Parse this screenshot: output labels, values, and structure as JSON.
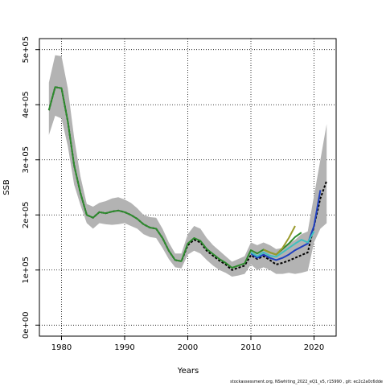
{
  "chart_data": {
    "type": "line",
    "xlabel": "Years",
    "ylabel": "SSB",
    "xlim": [
      1976.5,
      2023.5
    ],
    "ylim": [
      -20000,
      520000
    ],
    "x_ticks": [
      1980,
      1990,
      2000,
      2010,
      2020
    ],
    "x_tick_labels": [
      "1980",
      "1990",
      "2000",
      "2010",
      "2020"
    ],
    "y_ticks": [
      0,
      100000,
      200000,
      300000,
      400000,
      500000
    ],
    "y_tick_labels": [
      "0e+00",
      "1e+05",
      "2e+05",
      "3e+05",
      "4e+05",
      "5e+05"
    ],
    "grid": true,
    "confidence_band": {
      "x": [
        1978,
        1979,
        1980,
        1981,
        1982,
        1983,
        1984,
        1985,
        1986,
        1987,
        1988,
        1989,
        1990,
        1991,
        1992,
        1993,
        1994,
        1995,
        1996,
        1997,
        1998,
        1999,
        2000,
        2001,
        2002,
        2003,
        2004,
        2005,
        2006,
        2007,
        2008,
        2009,
        2010,
        2011,
        2012,
        2013,
        2014,
        2015,
        2016,
        2017,
        2018,
        2019,
        2020,
        2021,
        2022
      ],
      "upper": [
        440000,
        490000,
        488000,
        430000,
        340000,
        270000,
        220000,
        215000,
        222000,
        225000,
        230000,
        232000,
        228000,
        222000,
        212000,
        200000,
        196000,
        195000,
        175000,
        150000,
        130000,
        130000,
        165000,
        180000,
        175000,
        158000,
        145000,
        135000,
        125000,
        115000,
        120000,
        125000,
        150000,
        145000,
        150000,
        145000,
        138000,
        140000,
        148000,
        155000,
        165000,
        170000,
        235000,
        300000,
        365000
      ],
      "lower": [
        345000,
        380000,
        375000,
        325000,
        255000,
        218000,
        185000,
        175000,
        185000,
        183000,
        182000,
        183000,
        185000,
        180000,
        175000,
        165000,
        160000,
        158000,
        140000,
        120000,
        105000,
        103000,
        128000,
        135000,
        130000,
        118000,
        108000,
        100000,
        95000,
        88000,
        90000,
        93000,
        110000,
        100000,
        105000,
        100000,
        93000,
        93000,
        95000,
        93000,
        95000,
        98000,
        150000,
        175000,
        185000
      ]
    },
    "series": [
      {
        "color": "#000000",
        "style": "dashed",
        "x": [
          1978,
          1979,
          1980,
          1981,
          1982,
          1983,
          1984,
          1985,
          1986,
          1987,
          1988,
          1989,
          1990,
          1991,
          1992,
          1993,
          1994,
          1995,
          1996,
          1997,
          1998,
          1999,
          2000,
          2001,
          2002,
          2003,
          2004,
          2005,
          2006,
          2007,
          2008,
          2009,
          2010,
          2011,
          2012,
          2013,
          2014,
          2015,
          2016,
          2017,
          2018,
          2019,
          2020,
          2021,
          2022
        ],
        "y": [
          390000,
          432000,
          430000,
          370000,
          290000,
          240000,
          200000,
          195000,
          205000,
          203000,
          206000,
          208000,
          205000,
          200000,
          193000,
          183000,
          177000,
          175000,
          158000,
          135000,
          118000,
          116000,
          145000,
          155000,
          150000,
          135000,
          126000,
          117000,
          110000,
          100000,
          104000,
          108000,
          127000,
          120000,
          125000,
          118000,
          110000,
          113000,
          117000,
          122000,
          127000,
          132000,
          180000,
          230000,
          262000
        ]
      },
      {
        "color": "#1f3fbf",
        "style": "solid",
        "x": [
          2010,
          2011,
          2012,
          2013,
          2014,
          2015,
          2016,
          2017,
          2018,
          2019,
          2020,
          2021
        ],
        "y": [
          130000,
          122000,
          128000,
          122000,
          118000,
          122000,
          128000,
          136000,
          142000,
          148000,
          180000,
          245000
        ]
      },
      {
        "color": "#3fbfbf",
        "style": "solid",
        "x": [
          2010,
          2011,
          2012,
          2013,
          2014,
          2015,
          2016,
          2017,
          2018,
          2019,
          2020
        ],
        "y": [
          132000,
          125000,
          132000,
          126000,
          124000,
          132000,
          140000,
          148000,
          155000,
          150000,
          170000
        ]
      },
      {
        "color": "#2e8b2e",
        "style": "solid",
        "x": [
          1978,
          1979,
          1980,
          1981,
          1982,
          1983,
          1984,
          1985,
          1986,
          1987,
          1988,
          1989,
          1990,
          1991,
          1992,
          1993,
          1994,
          1995,
          1996,
          1997,
          1998,
          1999,
          2000,
          2001,
          2002,
          2003,
          2004,
          2005,
          2006,
          2007,
          2008,
          2009,
          2010,
          2011,
          2012,
          2013,
          2014,
          2015,
          2016,
          2017,
          2018
        ],
        "y": [
          390000,
          432000,
          430000,
          370000,
          290000,
          240000,
          200000,
          195000,
          205000,
          203000,
          206000,
          208000,
          205000,
          200000,
          193000,
          183000,
          177000,
          175000,
          158000,
          135000,
          118000,
          116000,
          148000,
          158000,
          153000,
          138000,
          129000,
          120000,
          113000,
          104000,
          108000,
          112000,
          136000,
          130000,
          137000,
          132000,
          128000,
          138000,
          148000,
          160000,
          168000
        ]
      },
      {
        "color": "#9a9a2a",
        "style": "solid",
        "x": [
          2012,
          2013,
          2014,
          2015,
          2016,
          2017
        ],
        "y": [
          137000,
          132000,
          128000,
          140000,
          158000,
          180000
        ]
      }
    ]
  },
  "footer": "stockassessment.org, NSwhiting_2022_eQ1_v5, r15990 , git: ec2c2a0c6dde"
}
